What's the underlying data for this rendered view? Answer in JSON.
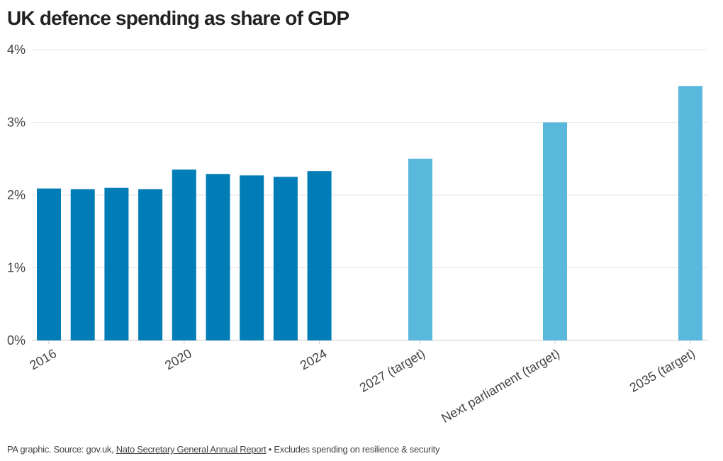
{
  "title": "UK defence spending as share of GDP",
  "footer": {
    "prefix": "PA graphic. Source: gov.uk, ",
    "link": "Nato Secretary General Annual Report",
    "suffix": " • Excludes spending on resilience & security"
  },
  "colors": {
    "actual": "#007cb6",
    "target": "#5ab8dd",
    "grid": "#e6e6e6",
    "axis": "#cccccc"
  },
  "chart_data": {
    "type": "bar",
    "title": "UK defence spending as share of GDP",
    "xlabel": "",
    "ylabel": "",
    "ylim": [
      0,
      4
    ],
    "y_ticks": [
      "0%",
      "1%",
      "2%",
      "3%",
      "4%"
    ],
    "grid": true,
    "series": [
      {
        "x": [
          "2016",
          "2017",
          "2018",
          "2019",
          "2020",
          "2021",
          "2022",
          "2023",
          "2024"
        ],
        "values": [
          2.09,
          2.08,
          2.1,
          2.08,
          2.35,
          2.29,
          2.27,
          2.25,
          2.33
        ],
        "x_labels_shown": [
          "2016",
          "2020",
          "2024"
        ]
      },
      {
        "x": [
          "2027 (target)",
          "Next parliament (target)",
          "2035 (target)"
        ],
        "values": [
          2.5,
          3.0,
          3.5
        ],
        "x_labels_shown": [
          "2027 (target)",
          "Next parliament (target)",
          "2035 (target)"
        ]
      }
    ]
  }
}
